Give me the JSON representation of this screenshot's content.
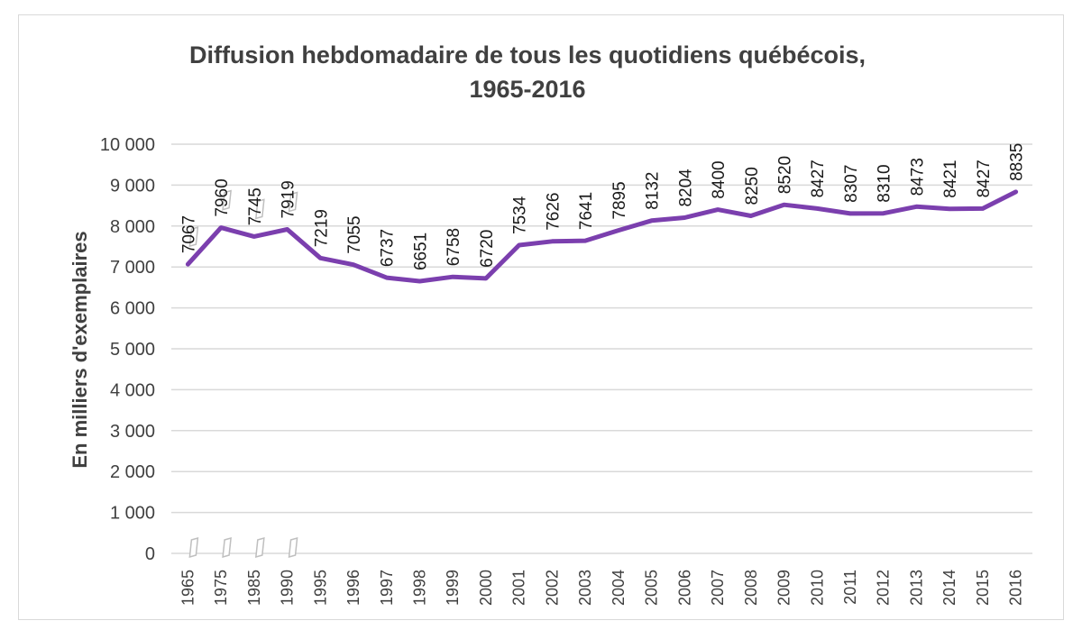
{
  "chart_data": {
    "type": "line",
    "title_line1": "Diffusion hebdomadaire de tous les quotidiens québécois,",
    "title_line2": "1965-2016",
    "ylabel": "En milliers d'exemplaires",
    "xlabel": "",
    "ylim": [
      0,
      10000
    ],
    "yticks": [
      0,
      1000,
      2000,
      3000,
      4000,
      5000,
      6000,
      7000,
      8000,
      9000,
      10000
    ],
    "ytick_labels": [
      "0",
      "1 000",
      "2 000",
      "3 000",
      "4 000",
      "5 000",
      "6 000",
      "7 000",
      "8 000",
      "9 000",
      "10 000"
    ],
    "grid": true,
    "legend": "none",
    "categories": [
      "1965",
      "1975",
      "1985",
      "1990",
      "1995",
      "1996",
      "1997",
      "1998",
      "1999",
      "2000",
      "2001",
      "2002",
      "2003",
      "2004",
      "2005",
      "2006",
      "2007",
      "2008",
      "2009",
      "2010",
      "2011",
      "2012",
      "2013",
      "2014",
      "2015",
      "2016"
    ],
    "values": [
      7067,
      7960,
      7745,
      7919,
      7219,
      7055,
      6737,
      6651,
      6758,
      6720,
      7534,
      7626,
      7641,
      7895,
      8132,
      8204,
      8400,
      8250,
      8520,
      8427,
      8307,
      8310,
      8473,
      8421,
      8427,
      8835
    ],
    "line_color": "#7b3fae",
    "grid_color": "#d9d9d9",
    "axis_break_categories": [
      "1965",
      "1975",
      "1985",
      "1990"
    ]
  }
}
